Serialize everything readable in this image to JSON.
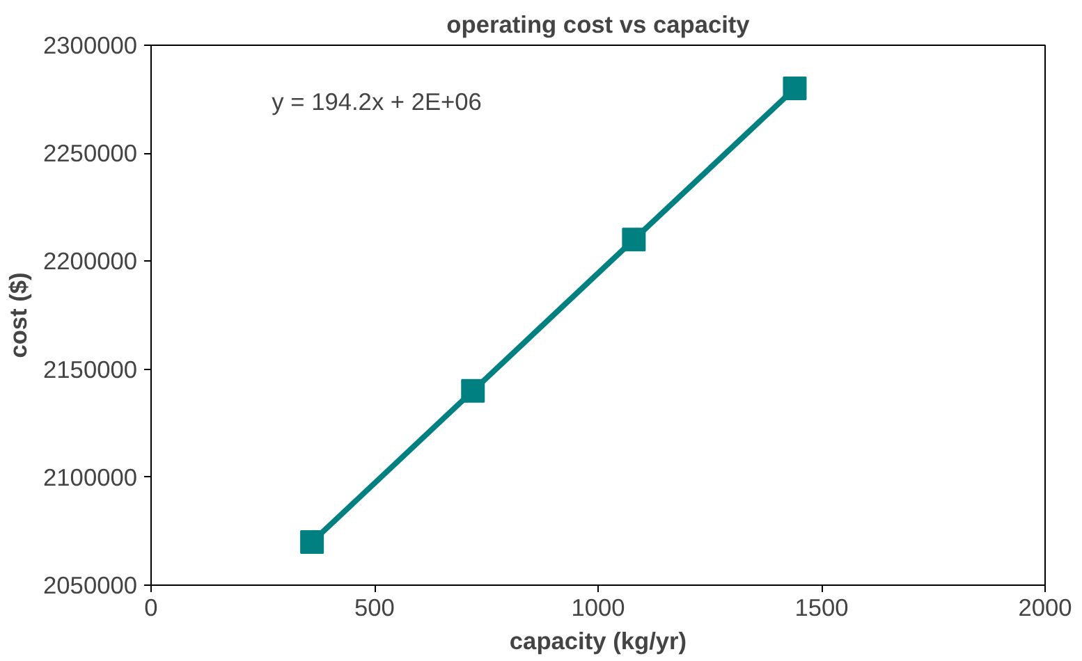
{
  "chart_data": {
    "type": "scatter",
    "title": "operating cost vs capacity",
    "xlabel": "capacity (kg/yr)",
    "ylabel": "cost ($)",
    "x": [
      360,
      720,
      1080,
      1440
    ],
    "series": [
      {
        "color": "#008080",
        "values": [
          2070000,
          2140000,
          2210000,
          2280000
        ],
        "marker": "square"
      },
      {
        "type": "line",
        "color": "#008080",
        "x": [
          360,
          1440
        ],
        "values": [
          2070000,
          2280000
        ],
        "line_style": "solid",
        "marker": "none"
      }
    ],
    "annotations": [
      "y = 194.2x + 2E+06"
    ],
    "xlim": [
      0,
      2000
    ],
    "xticks": [
      0,
      500,
      1000,
      1500,
      2000
    ],
    "ylim": [
      2050000,
      2300000
    ],
    "yticks": [
      2050000,
      2100000,
      2150000,
      2200000,
      2250000,
      2300000
    ],
    "grid": false
  }
}
